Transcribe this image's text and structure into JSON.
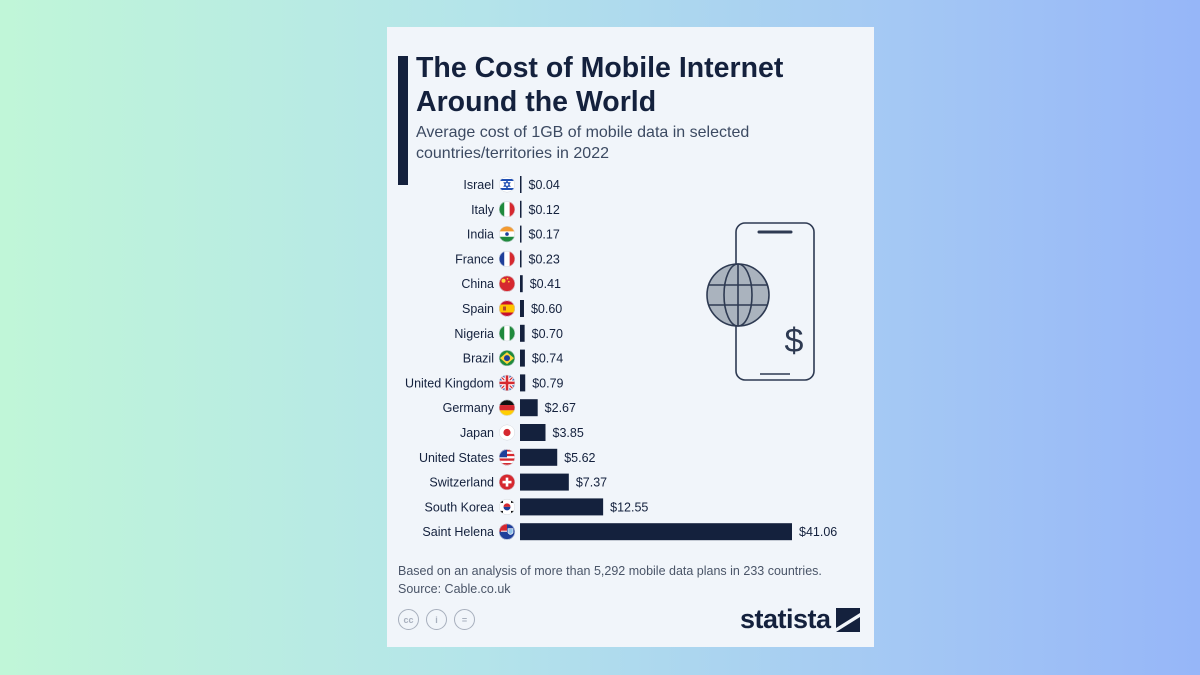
{
  "chart_data": {
    "type": "bar",
    "orientation": "horizontal",
    "title": "The Cost of Mobile Internet Around the World",
    "subtitle": "Average cost of 1GB of mobile data in selected countries/territories in 2022",
    "categories": [
      "Israel",
      "Italy",
      "India",
      "France",
      "China",
      "Spain",
      "Nigeria",
      "Brazil",
      "United Kingdom",
      "Germany",
      "Japan",
      "United States",
      "Switzerland",
      "South Korea",
      "Saint Helena"
    ],
    "values": [
      0.04,
      0.12,
      0.17,
      0.23,
      0.41,
      0.6,
      0.7,
      0.74,
      0.79,
      2.67,
      3.85,
      5.62,
      7.37,
      12.55,
      41.06
    ],
    "value_labels": [
      "$0.04",
      "$0.12",
      "$0.17",
      "$0.23",
      "$0.41",
      "$0.60",
      "$0.70",
      "$0.74",
      "$0.79",
      "$2.67",
      "$3.85",
      "$5.62",
      "$7.37",
      "$12.55",
      "$41.06"
    ],
    "flags": [
      "israel-flag-icon",
      "italy-flag-icon",
      "india-flag-icon",
      "france-flag-icon",
      "china-flag-icon",
      "spain-flag-icon",
      "nigeria-flag-icon",
      "brazil-flag-icon",
      "uk-flag-icon",
      "germany-flag-icon",
      "japan-flag-icon",
      "usa-flag-icon",
      "switzerland-flag-icon",
      "south-korea-flag-icon",
      "saint-helena-flag-icon"
    ],
    "bar_color": "#14213d",
    "xlim": [
      0,
      41.06
    ],
    "grid": false,
    "legend": "none"
  },
  "footnote": {
    "line1": "Based on an analysis of more than 5,292 mobile data plans in 233 countries.",
    "line2": "Source: Cable.co.uk"
  },
  "logo": {
    "text": "statista"
  },
  "license_icons": [
    "creative-commons-icon",
    "attribution-icon",
    "no-derivatives-icon"
  ],
  "license_glyphs": [
    "cc",
    "i",
    "="
  ],
  "illustration": "phone-globe-dollar-icon",
  "colors": {
    "navy": "#14213d",
    "card": "#f1f5fa",
    "accent_line": "#3c4a62"
  }
}
